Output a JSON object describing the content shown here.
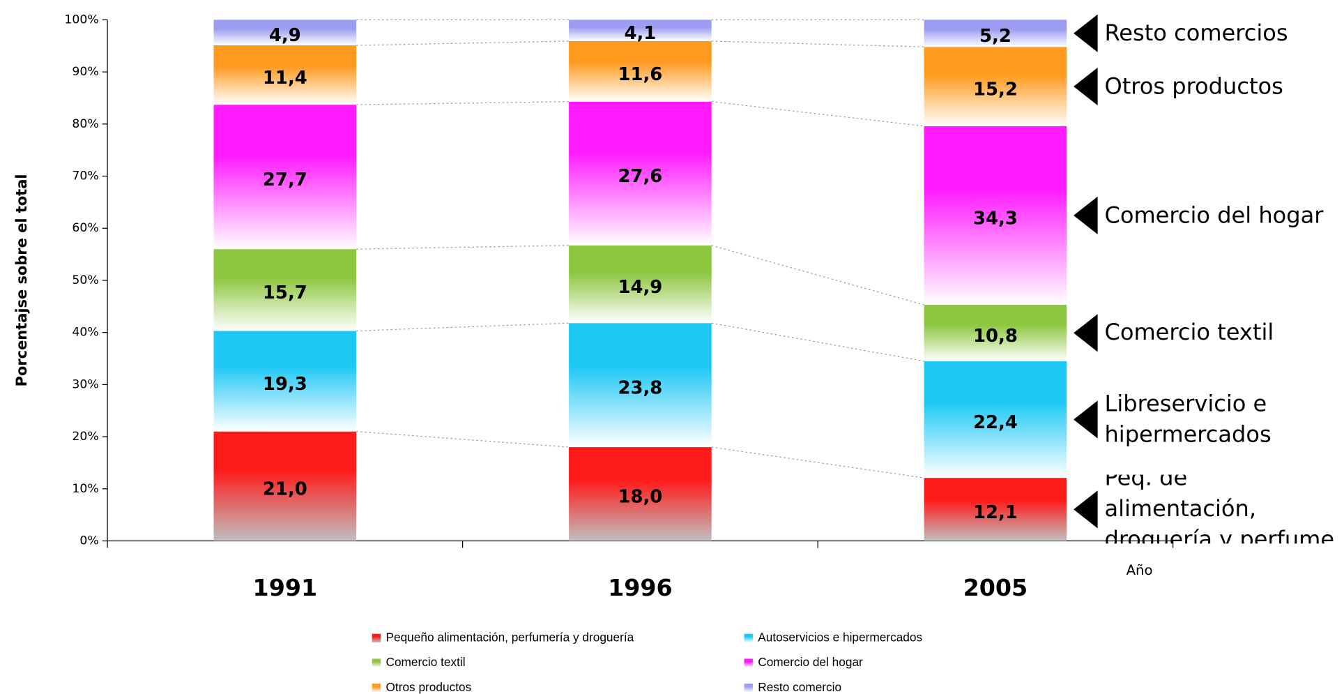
{
  "chart_data": {
    "type": "stacked_bar",
    "y_label": "Porcentajse sobre el total",
    "x_label": "Año",
    "categories": [
      "1991",
      "1996",
      "2005"
    ],
    "series": [
      {
        "name": "Pequeño alimentación, perfumería y droguería",
        "color": "#ff1a1a",
        "values": [
          21.0,
          18.0,
          12.1
        ],
        "value_labels": [
          "21,0",
          "18,0",
          "12,1"
        ]
      },
      {
        "name": "Autoservicios e hipermercados",
        "color": "#1ec8f5",
        "values": [
          19.3,
          23.8,
          22.4
        ],
        "value_labels": [
          "19,3",
          "23,8",
          "22,4"
        ]
      },
      {
        "name": "Comercio textil",
        "color": "#8dc63f",
        "values": [
          15.7,
          14.9,
          10.8
        ],
        "value_labels": [
          "15,7",
          "14,9",
          "10,8"
        ]
      },
      {
        "name": "Comercio del hogar",
        "color": "#ff1aff",
        "values": [
          27.7,
          27.6,
          34.3
        ],
        "value_labels": [
          "27,7",
          "27,6",
          "34,3"
        ]
      },
      {
        "name": "Otros productos",
        "color": "#ff9a1e",
        "values": [
          11.4,
          11.6,
          15.2
        ],
        "value_labels": [
          "11,4",
          "11,6",
          "15,2"
        ]
      },
      {
        "name": "Resto comercio",
        "color": "#9c9cf2",
        "values": [
          4.9,
          4.1,
          5.2
        ],
        "value_labels": [
          "4,9",
          "4,1",
          "5,2"
        ]
      }
    ],
    "annotations": [
      "Peq. de alimentación, droguería y  perfume",
      "Libreservicio e hipermercados",
      "Comercio textil",
      "Comercio del hogar",
      "Otros productos",
      "Resto comercios"
    ],
    "ylim": [
      0,
      100
    ],
    "yticks": [
      {
        "value": 0,
        "label": "0%"
      },
      {
        "value": 10,
        "label": "10%"
      },
      {
        "value": 20,
        "label": "20%"
      },
      {
        "value": 30,
        "label": "30%"
      },
      {
        "value": 40,
        "label": "40%"
      },
      {
        "value": 50,
        "label": "50%"
      },
      {
        "value": 60,
        "label": "60%"
      },
      {
        "value": 70,
        "label": "70%"
      },
      {
        "value": 80,
        "label": "80%"
      },
      {
        "value": 90,
        "label": "90%"
      },
      {
        "value": 100,
        "label": "100%"
      }
    ]
  }
}
